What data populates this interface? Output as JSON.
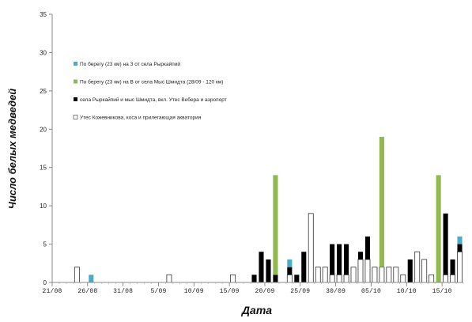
{
  "chart_data": {
    "type": "bar",
    "title": "",
    "xlabel": "Дата",
    "ylabel": "Число белых медведей",
    "ylim": [
      0,
      35
    ],
    "yticks": [
      0,
      5,
      10,
      15,
      20,
      25,
      30,
      35
    ],
    "xlim": [
      "2011-08-21",
      "2011-10-18"
    ],
    "xticks": [
      "21/08",
      "26/08",
      "31/08",
      "5/09",
      "10/09",
      "15/09",
      "20/09",
      "25/09",
      "30/09",
      "05/10",
      "10/10",
      "15/10"
    ],
    "grid": false,
    "legend_position": "top-left",
    "stacked": true,
    "x": [
      "2011-08-24",
      "2011-08-25",
      "2011-08-26",
      "2011-09-06",
      "2011-09-15",
      "2011-09-18",
      "2011-09-19",
      "2011-09-20",
      "2011-09-21",
      "2011-09-22",
      "2011-09-23",
      "2011-09-24",
      "2011-09-25",
      "2011-09-26",
      "2011-09-27",
      "2011-09-28",
      "2011-09-29",
      "2011-09-30",
      "2011-10-01",
      "2011-10-02",
      "2011-10-03",
      "2011-10-04",
      "2011-10-05",
      "2011-10-06",
      "2011-10-07",
      "2011-10-08",
      "2011-10-09",
      "2011-10-10",
      "2011-10-11",
      "2011-10-12",
      "2011-10-13",
      "2011-10-14",
      "2011-10-15",
      "2011-10-16",
      "2011-10-17"
    ],
    "series": [
      {
        "name": "Утес Кожевникова, коса и прилегающая акватория",
        "color": "#ffffff",
        "values": [
          2,
          0,
          0,
          1,
          1,
          0,
          0,
          0,
          0,
          0,
          1,
          0,
          0,
          9,
          2,
          2,
          1,
          1,
          1,
          2,
          3,
          3,
          2,
          2,
          2,
          2,
          1,
          0,
          4,
          3,
          1,
          0,
          1,
          1,
          4
        ]
      },
      {
        "name": "села Рыркайпий и мыс Шмидта, вкл. Утес Вебера и аэропорт",
        "color": "#000000",
        "values": [
          0,
          0,
          0,
          0,
          0,
          1,
          4,
          3,
          1,
          0,
          1,
          1,
          4,
          0,
          0,
          0,
          4,
          4,
          4,
          0,
          1,
          3,
          0,
          0,
          0,
          0,
          0,
          3,
          0,
          0,
          0,
          0,
          8,
          2,
          1
        ]
      },
      {
        "name": "По берегу (23 км) на В от села Мыс Шмидта (28/09 - 120 км)",
        "color": "#92b950",
        "values": [
          0,
          0,
          0,
          0,
          0,
          0,
          0,
          0,
          13,
          0,
          0,
          0,
          0,
          0,
          0,
          0,
          0,
          0,
          0,
          0,
          0,
          0,
          0,
          17,
          0,
          0,
          0,
          0,
          0,
          0,
          0,
          14,
          0,
          0,
          0
        ]
      },
      {
        "name": "По берегу (23 км) на З от села Рыркайпий",
        "color": "#4bacc6",
        "values": [
          0,
          0,
          1,
          0,
          0,
          0,
          0,
          0,
          0,
          0,
          1,
          0,
          0,
          0,
          0,
          0,
          0,
          0,
          0,
          0,
          0,
          0,
          0,
          0,
          0,
          0,
          0,
          0,
          0,
          0,
          0,
          0,
          0,
          0,
          1
        ]
      }
    ]
  }
}
